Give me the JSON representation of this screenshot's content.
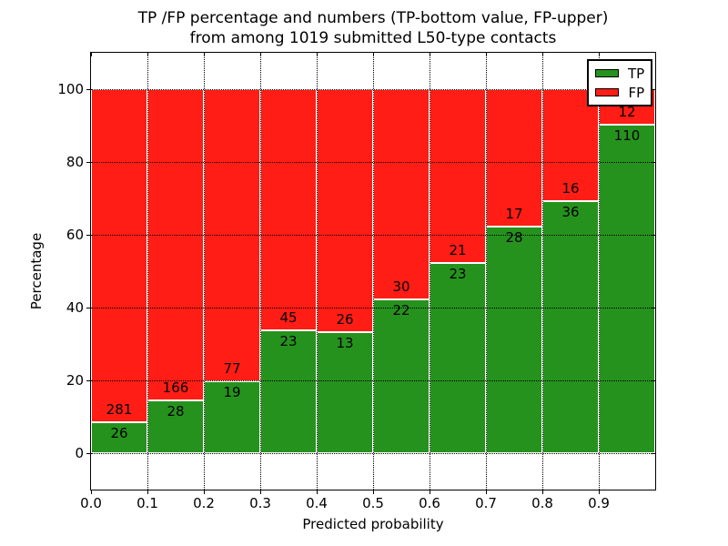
{
  "title": {
    "line1": "TP /FP percentage and numbers (TP-bottom value, FP-upper)",
    "line2": "from among 1019 submitted L50-type contacts"
  },
  "axes": {
    "xlabel": "Predicted probability",
    "ylabel": "Percentage",
    "xticks": [
      "0.0",
      "0.1",
      "0.2",
      "0.3",
      "0.4",
      "0.5",
      "0.6",
      "0.7",
      "0.8",
      "0.9"
    ],
    "yticks": [
      0,
      20,
      40,
      60,
      80,
      100
    ],
    "xlim": [
      0.0,
      1.0
    ],
    "ylim": [
      -10,
      110
    ],
    "grid_style": "dotted"
  },
  "legend": {
    "position": "upper-right",
    "items": [
      {
        "label": "TP",
        "color": "#26921E"
      },
      {
        "label": "FP",
        "color": "#FF1D15"
      }
    ]
  },
  "chart_data": {
    "type": "bar",
    "stacked": true,
    "normalized": "each bar stacks to 100%",
    "title": "TP /FP percentage and numbers (TP-bottom value, FP-upper) from among 1019 submitted L50-type contacts",
    "xlabel": "Predicted probability",
    "ylabel": "Percentage",
    "total_contacts": 1019,
    "bins": [
      "0.0-0.1",
      "0.1-0.2",
      "0.2-0.3",
      "0.3-0.4",
      "0.4-0.5",
      "0.5-0.6",
      "0.6-0.7",
      "0.7-0.8",
      "0.8-0.9",
      "0.9-1.0"
    ],
    "series": [
      {
        "name": "TP",
        "color": "#26921E",
        "counts": [
          26,
          28,
          19,
          23,
          13,
          22,
          23,
          28,
          36,
          110
        ]
      },
      {
        "name": "FP",
        "color": "#FF1D15",
        "counts": [
          281,
          166,
          77,
          45,
          26,
          30,
          21,
          17,
          16,
          12
        ]
      }
    ],
    "tp_percent": [
      8.5,
      14.4,
      19.8,
      33.8,
      33.3,
      42.3,
      52.3,
      62.2,
      69.2,
      90.2
    ]
  }
}
